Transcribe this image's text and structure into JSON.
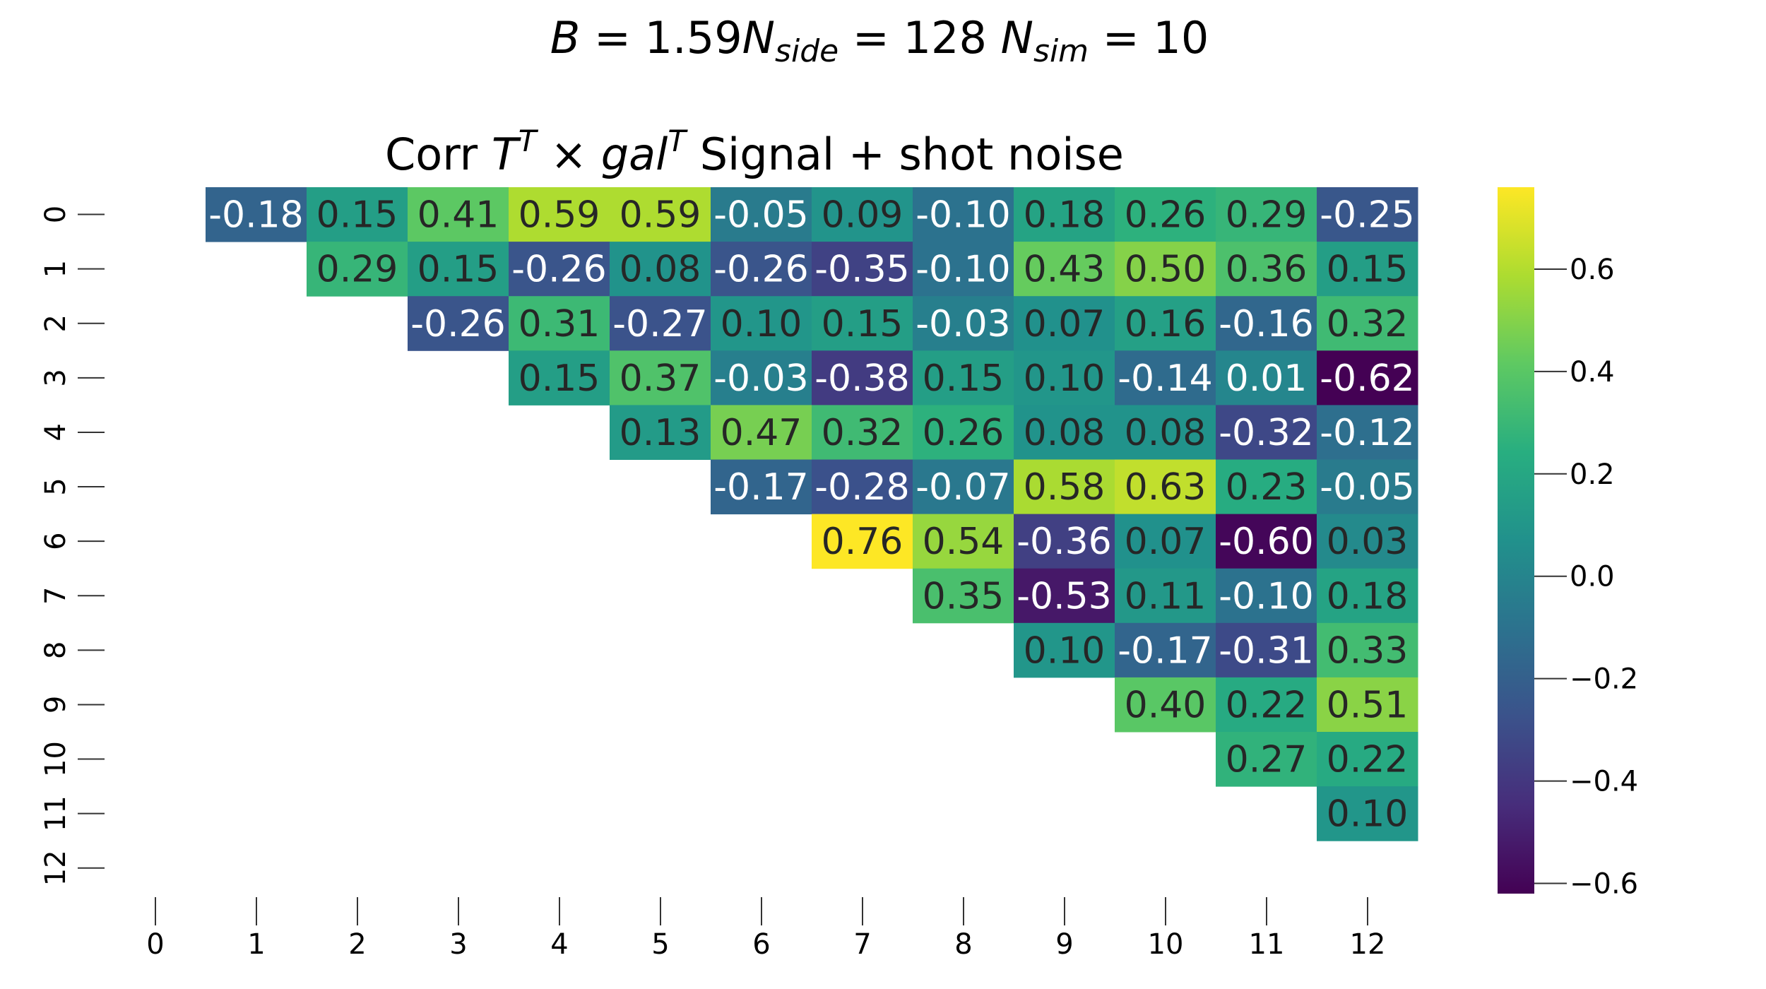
{
  "chart_data": {
    "type": "heatmap",
    "suptitle": "B = 1.59N_side = 128 N_sim = 10",
    "title": "Corr T^T × gal^T Signal + shot noise",
    "x_ticks": [
      "0",
      "1",
      "2",
      "3",
      "4",
      "5",
      "6",
      "7",
      "8",
      "9",
      "10",
      "11",
      "12"
    ],
    "y_ticks": [
      "0",
      "1",
      "2",
      "3",
      "4",
      "5",
      "6",
      "7",
      "8",
      "9",
      "10",
      "11",
      "12"
    ],
    "mask": "lower-triangle-and-diagonal",
    "values": [
      [
        null,
        -0.18,
        0.15,
        0.41,
        0.59,
        0.59,
        -0.05,
        0.09,
        -0.1,
        0.18,
        0.26,
        0.29,
        -0.25
      ],
      [
        null,
        null,
        0.29,
        0.15,
        -0.26,
        0.08,
        -0.26,
        -0.35,
        -0.1,
        0.43,
        0.5,
        0.36,
        0.15
      ],
      [
        null,
        null,
        null,
        -0.26,
        0.31,
        -0.27,
        0.1,
        0.15,
        -0.03,
        0.07,
        0.16,
        -0.16,
        0.32
      ],
      [
        null,
        null,
        null,
        null,
        0.15,
        0.37,
        -0.03,
        -0.38,
        0.15,
        0.1,
        -0.14,
        0.01,
        -0.62
      ],
      [
        null,
        null,
        null,
        null,
        null,
        0.13,
        0.47,
        0.32,
        0.26,
        0.08,
        0.08,
        -0.32,
        -0.12
      ],
      [
        null,
        null,
        null,
        null,
        null,
        null,
        -0.17,
        -0.28,
        -0.07,
        0.58,
        0.63,
        0.23,
        -0.05
      ],
      [
        null,
        null,
        null,
        null,
        null,
        null,
        null,
        0.76,
        0.54,
        -0.36,
        0.07,
        -0.6,
        0.03
      ],
      [
        null,
        null,
        null,
        null,
        null,
        null,
        null,
        null,
        0.35,
        -0.53,
        0.11,
        -0.1,
        0.18
      ],
      [
        null,
        null,
        null,
        null,
        null,
        null,
        null,
        null,
        null,
        0.1,
        -0.17,
        -0.31,
        0.33
      ],
      [
        null,
        null,
        null,
        null,
        null,
        null,
        null,
        null,
        null,
        null,
        0.4,
        0.22,
        0.51
      ],
      [
        null,
        null,
        null,
        null,
        null,
        null,
        null,
        null,
        null,
        null,
        null,
        0.27,
        0.22
      ],
      [
        null,
        null,
        null,
        null,
        null,
        null,
        null,
        null,
        null,
        null,
        null,
        null,
        0.1
      ],
      [
        null,
        null,
        null,
        null,
        null,
        null,
        null,
        null,
        null,
        null,
        null,
        null,
        null
      ]
    ],
    "colormap": "viridis",
    "colorbar": {
      "min": -0.62,
      "max": 0.76,
      "ticks": [
        0.6,
        0.4,
        0.2,
        0.0,
        -0.2,
        -0.4,
        -0.6
      ],
      "tick_labels": [
        "0.6",
        "0.4",
        "0.2",
        "0.0",
        "−0.2",
        "−0.4",
        "−0.6"
      ]
    },
    "annotation_format": "0.00",
    "grid": false
  }
}
